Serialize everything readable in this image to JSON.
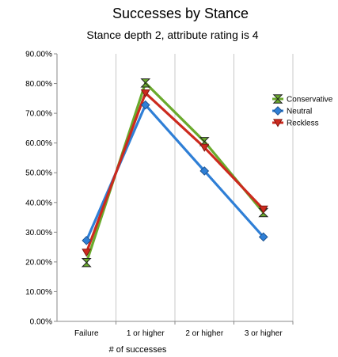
{
  "chart_data": {
    "type": "line",
    "title": "Successes by Stance",
    "subtitle": "Stance depth 2, attribute rating is 4",
    "xlabel": "# of successes",
    "ylabel": "",
    "categories": [
      "Failure",
      "1 or higher",
      "2 or higher",
      "3 or higher"
    ],
    "yticks": [
      "0.00%",
      "10.00%",
      "20.00%",
      "30.00%",
      "40.00%",
      "50.00%",
      "60.00%",
      "70.00%",
      "80.00%",
      "90.00%"
    ],
    "ylim": [
      0,
      90
    ],
    "grid": "vertical",
    "legend_position": "right",
    "series": [
      {
        "name": "Conservative",
        "values": [
          19.8,
          80.2,
          60.5,
          36.6
        ],
        "color": "#6aaa2c",
        "marker": "hourglass"
      },
      {
        "name": "Neutral",
        "values": [
          27.2,
          72.8,
          50.6,
          28.4
        ],
        "color": "#2f7fd6",
        "marker": "diamond"
      },
      {
        "name": "Reckless",
        "values": [
          23.2,
          76.8,
          58.5,
          37.7
        ],
        "color": "#cc2a1e",
        "marker": "triangle-down"
      }
    ]
  }
}
